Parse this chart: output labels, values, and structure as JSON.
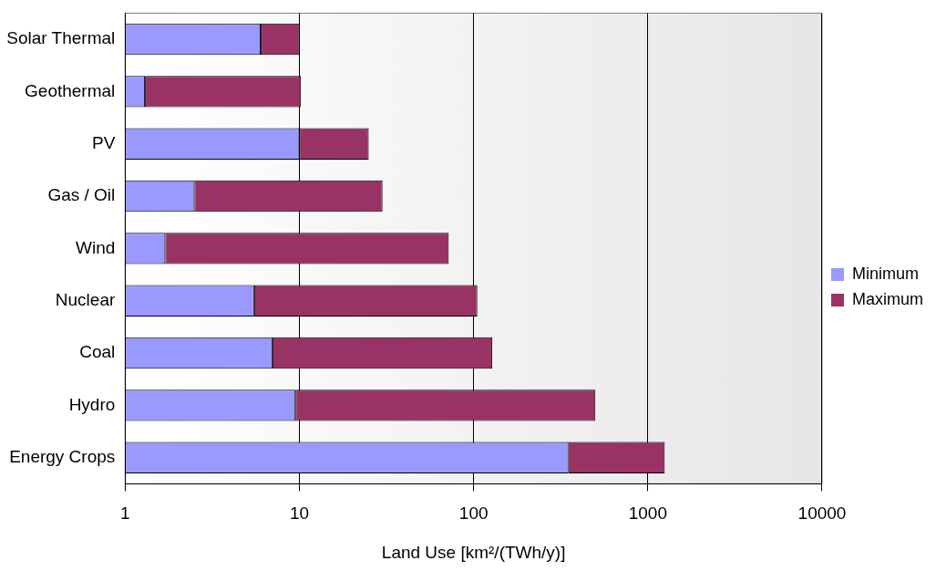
{
  "chart_data": {
    "type": "bar",
    "orientation": "horizontal",
    "stacked": true,
    "log": "x",
    "xlabel": "Land Use [km²/(TWh/y)]",
    "categories": [
      "Solar Thermal",
      "Geothermal",
      "PV",
      "Gas / Oil",
      "Wind",
      "Nuclear",
      "Coal",
      "Hydro",
      "Energy Crops"
    ],
    "series": [
      {
        "name": "Minimum",
        "color": "#9999ff",
        "values": [
          6,
          1.3,
          10,
          2.5,
          1.7,
          5.5,
          7,
          9.5,
          350
        ]
      },
      {
        "name": "Maximum",
        "color": "#993366",
        "values": [
          4,
          8.9,
          15,
          27.5,
          70.3,
          99.5,
          121,
          490.5,
          900
        ]
      }
    ],
    "xlim": [
      1,
      10000
    ],
    "xticks": [
      1,
      10,
      100,
      1000,
      10000
    ],
    "grid": "x",
    "legend": "right"
  }
}
